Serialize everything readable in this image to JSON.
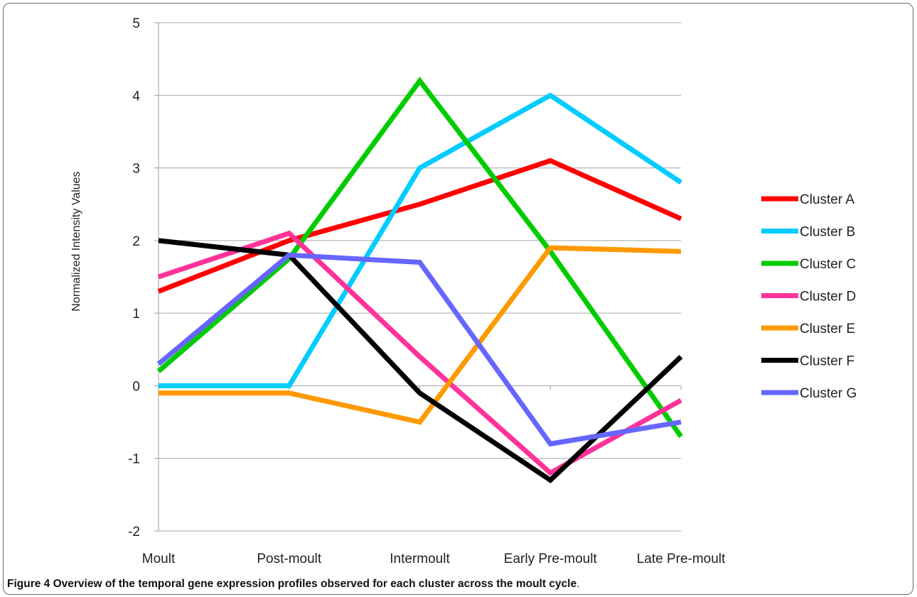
{
  "chart_data": {
    "type": "line",
    "title": "",
    "xlabel": "",
    "ylabel": "Normalized Intensity Values",
    "categories": [
      "Moult",
      "Post-moult",
      "Intermoult",
      "Early Pre-moult",
      "Late Pre-moult"
    ],
    "ylim": [
      -2,
      5
    ],
    "yticks": [
      -2,
      -1,
      0,
      1,
      2,
      3,
      4,
      5
    ],
    "grid": "horizontal",
    "legend_position": "right",
    "series": [
      {
        "name": "Cluster A",
        "color": "#ff0000",
        "values": [
          1.3,
          2.0,
          2.5,
          3.1,
          2.3
        ]
      },
      {
        "name": "Cluster B",
        "color": "#00ccff",
        "values": [
          0.0,
          0.0,
          3.0,
          4.0,
          2.8
        ]
      },
      {
        "name": "Cluster C",
        "color": "#00cc00",
        "values": [
          0.2,
          1.75,
          4.2,
          1.85,
          -0.7
        ]
      },
      {
        "name": "Cluster D",
        "color": "#ff3399",
        "values": [
          1.5,
          2.1,
          0.4,
          -1.2,
          -0.2
        ]
      },
      {
        "name": "Cluster E",
        "color": "#ff9900",
        "values": [
          -0.1,
          -0.1,
          -0.5,
          1.9,
          1.85
        ]
      },
      {
        "name": "Cluster F",
        "color": "#000000",
        "values": [
          2.0,
          1.8,
          -0.1,
          -1.3,
          0.4
        ]
      },
      {
        "name": "Cluster G",
        "color": "#6666ff",
        "values": [
          0.3,
          1.8,
          1.7,
          -0.8,
          -0.5
        ]
      }
    ]
  },
  "caption": {
    "label": "Figure 4 Overview of the temporal gene expression profiles observed for each cluster across the moult cycle",
    "tail": "."
  }
}
